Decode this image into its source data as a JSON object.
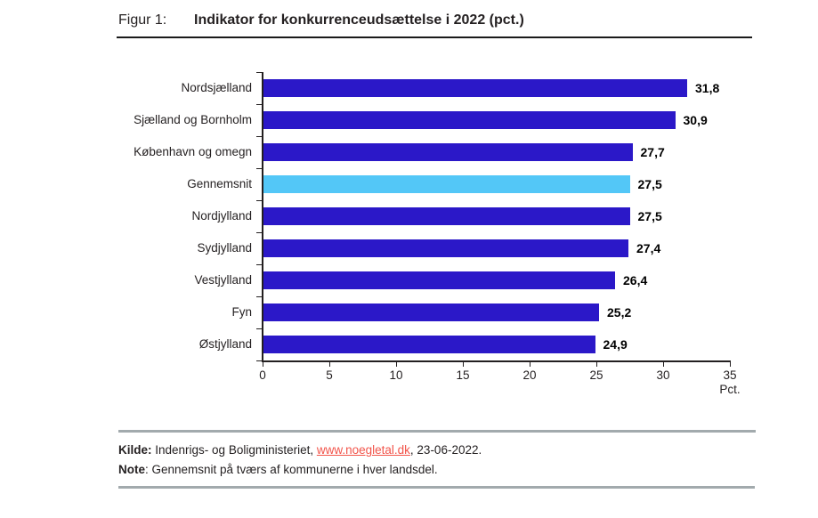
{
  "header": {
    "figure_label": "Figur 1:",
    "title": "Indikator for konkurrenceudsættelse i 2022 (pct.)"
  },
  "chart_data": {
    "type": "bar",
    "orientation": "horizontal",
    "categories": [
      "Nordsjælland",
      "Sjælland og Bornholm",
      "København og omegn",
      "Gennemsnit",
      "Nordjylland",
      "Sydjylland",
      "Vestjylland",
      "Fyn",
      "Østjylland"
    ],
    "values": [
      31.8,
      30.9,
      27.7,
      27.5,
      27.5,
      27.4,
      26.4,
      25.2,
      24.9
    ],
    "value_labels": [
      "31,8",
      "30,9",
      "27,7",
      "27,5",
      "27,5",
      "27,4",
      "26,4",
      "25,2",
      "24,9"
    ],
    "highlight_index": 3,
    "highlight_category": "Gennemsnit",
    "bar_color": "#2b18c8",
    "highlight_color": "#53c7f7",
    "axis_color": "#231f20",
    "xlim": [
      0,
      35
    ],
    "x_ticks": [
      0,
      5,
      10,
      15,
      20,
      25,
      30,
      35
    ],
    "x_unit": "Pct.",
    "grid": false,
    "legend": null
  },
  "footer": {
    "kilde_label": "Kilde:",
    "kilde_text": " Indenrigs- og Boligministeriet, ",
    "kilde_link": "www.noegletal.dk",
    "kilde_suffix": ", 23-06-2022.",
    "note_label": "Note",
    "note_text": ": Gennemsnit på tværs af kommunerne i hver landsdel.",
    "link_color": "#f2544a"
  }
}
